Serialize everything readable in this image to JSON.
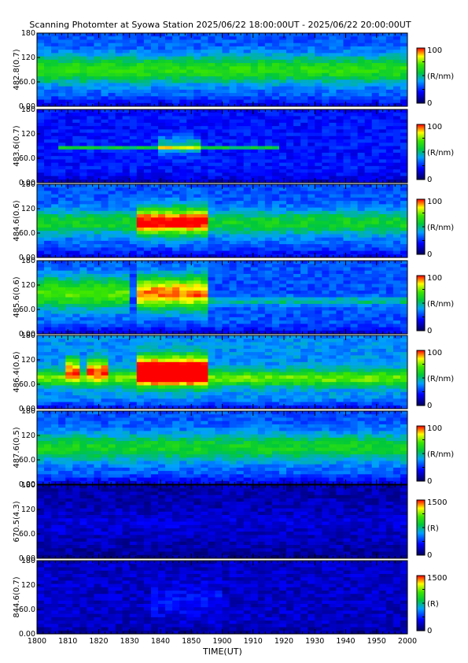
{
  "title": "Scanning Photomter at Syowa Station 2025/06/22 18:00:00UT - 2025/06/22 20:00:00UT",
  "xlabel": "TIME(UT)",
  "x_ticks": [
    "1800",
    "1810",
    "1820",
    "1830",
    "1840",
    "1850",
    "1900",
    "1910",
    "1920",
    "1930",
    "1940",
    "1950",
    "2000"
  ],
  "y_ticks": [
    "0.00",
    "60.0",
    "120",
    "180"
  ],
  "colors": {
    "low": "#0000a0",
    "mid": "#00c000",
    "high": "#ff0000"
  },
  "chart_data": [
    {
      "type": "heatmap",
      "ylabel": "482.8(0.7)",
      "ylim": [
        0,
        180
      ],
      "x": [
        "1800",
        "2000"
      ],
      "colorbar": {
        "min": "0",
        "max": "100",
        "unit": "(R/nm)"
      },
      "intensity": 0.3,
      "features": [
        {
          "start": 0,
          "end": 1,
          "center": 90,
          "width": 35,
          "amp": 0.35
        }
      ]
    },
    {
      "type": "heatmap",
      "ylabel": "483.6(0.7)",
      "ylim": [
        0,
        180
      ],
      "x": [
        "1800",
        "2000"
      ],
      "colorbar": {
        "min": "0",
        "max": "100",
        "unit": "(R/nm)"
      },
      "intensity": 0.22,
      "features": [
        {
          "start": 0.05,
          "end": 0.65,
          "center": 85,
          "width": 4,
          "amp": 0.35
        },
        {
          "start": 0.32,
          "end": 0.45,
          "center": 90,
          "width": 20,
          "amp": 0.3
        }
      ]
    },
    {
      "type": "heatmap",
      "ylabel": "484.6(0.6)",
      "ylim": [
        0,
        180
      ],
      "x": [
        "1800",
        "2000"
      ],
      "colorbar": {
        "min": "0",
        "max": "100",
        "unit": "(R/nm)"
      },
      "intensity": 0.3,
      "features": [
        {
          "start": 0,
          "end": 1,
          "center": 85,
          "width": 30,
          "amp": 0.3
        },
        {
          "start": 0.27,
          "end": 0.47,
          "center": 90,
          "width": 35,
          "amp": 0.45
        }
      ]
    },
    {
      "type": "heatmap",
      "ylabel": "485.6(0.6)",
      "ylim": [
        0,
        180
      ],
      "x": [
        "1800",
        "2000"
      ],
      "colorbar": {
        "min": "0",
        "max": "100",
        "unit": "(R/nm)"
      },
      "intensity": 0.3,
      "features": [
        {
          "start": 0,
          "end": 0.25,
          "center": 100,
          "width": 40,
          "amp": 0.4
        },
        {
          "start": 0.26,
          "end": 0.46,
          "center": 100,
          "width": 40,
          "amp": 0.65
        },
        {
          "start": 0.46,
          "end": 1,
          "center": 80,
          "width": 10,
          "amp": 0.2
        }
      ]
    },
    {
      "type": "heatmap",
      "ylabel": "486.4(0.6)",
      "ylim": [
        0,
        180
      ],
      "x": [
        "1800",
        "2000"
      ],
      "colorbar": {
        "min": "0",
        "max": "100",
        "unit": "(R/nm)"
      },
      "intensity": 0.38,
      "features": [
        {
          "start": 0,
          "end": 1,
          "center": 75,
          "width": 20,
          "amp": 0.35
        },
        {
          "start": 0.07,
          "end": 0.12,
          "center": 100,
          "width": 25,
          "amp": 0.45
        },
        {
          "start": 0.14,
          "end": 0.19,
          "center": 100,
          "width": 25,
          "amp": 0.45
        },
        {
          "start": 0.26,
          "end": 0.46,
          "center": 95,
          "width": 35,
          "amp": 0.75
        }
      ]
    },
    {
      "type": "heatmap",
      "ylabel": "487.6(0.5)",
      "ylim": [
        0,
        180
      ],
      "x": [
        "1800",
        "2000"
      ],
      "colorbar": {
        "min": "0",
        "max": "100",
        "unit": "(R/nm)"
      },
      "intensity": 0.3,
      "features": [
        {
          "start": 0,
          "end": 1,
          "center": 90,
          "width": 35,
          "amp": 0.3
        }
      ]
    },
    {
      "type": "heatmap",
      "ylabel": "670.5(4.3)",
      "ylim": [
        0,
        180
      ],
      "x": [
        "1800",
        "2000"
      ],
      "colorbar": {
        "min": "0",
        "max": "1500",
        "unit": "(R)"
      },
      "intensity": 0.1,
      "features": [
        {
          "start": 0,
          "end": 1,
          "center": 85,
          "width": 35,
          "amp": 0.05
        }
      ]
    },
    {
      "type": "heatmap",
      "ylabel": "844.6(0.7)",
      "ylim": [
        0,
        180
      ],
      "x": [
        "1800",
        "2000"
      ],
      "colorbar": {
        "min": "0",
        "max": "1500",
        "unit": "(R)"
      },
      "intensity": 0.13,
      "features": [
        {
          "start": 0.3,
          "end": 0.5,
          "center": 80,
          "width": 40,
          "amp": 0.08
        }
      ]
    }
  ]
}
